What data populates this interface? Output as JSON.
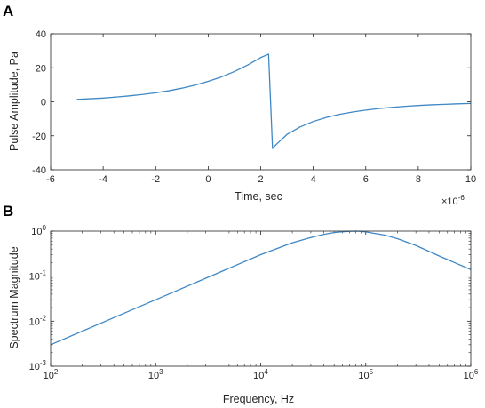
{
  "panels": [
    {
      "label": "A"
    },
    {
      "label": "B"
    }
  ],
  "chart_data": [
    {
      "type": "line",
      "xlabel": "Time, sec",
      "ylabel": "Pulse Amplitude, Pa",
      "x_exponent_label": "×10",
      "x_exponent_power": "-6",
      "xlim": [
        -6,
        10
      ],
      "ylim": [
        -40,
        40
      ],
      "xticks": [
        -6,
        -4,
        -2,
        0,
        2,
        4,
        6,
        8,
        10
      ],
      "xtick_labels": [
        "-6",
        "-4",
        "-2",
        "0",
        "2",
        "4",
        "6",
        "8",
        "10"
      ],
      "yticks": [
        -40,
        -20,
        0,
        20,
        40
      ],
      "ytick_labels": [
        "-40",
        "-20",
        "0",
        "20",
        "40"
      ],
      "x_scale_note": "x values in units of 1e-6 s",
      "grid": false,
      "color": "#3f88c5",
      "series": [
        {
          "x": [
            -5.0,
            -4.5,
            -4.0,
            -3.5,
            -3.0,
            -2.5,
            -2.0,
            -1.5,
            -1.0,
            -0.5,
            0.0,
            0.5,
            1.0,
            1.5,
            2.0,
            2.3,
            2.45,
            2.6,
            3.0,
            3.5,
            4.0,
            4.5,
            5.0,
            5.5,
            6.0,
            6.5,
            7.0,
            7.5,
            8.0,
            8.5,
            9.0,
            9.5,
            10.0
          ],
          "y": [
            1.4,
            1.8,
            2.2,
            2.8,
            3.5,
            4.3,
            5.3,
            6.5,
            8.0,
            9.8,
            12.0,
            14.6,
            17.8,
            21.6,
            26.0,
            28.0,
            -27.5,
            -25.0,
            -19.2,
            -14.8,
            -11.6,
            -9.2,
            -7.4,
            -6.0,
            -4.9,
            -4.0,
            -3.3,
            -2.7,
            -2.2,
            -1.8,
            -1.5,
            -1.2,
            -1.0
          ]
        }
      ]
    },
    {
      "type": "line",
      "xlabel": "Frequency, Hz",
      "ylabel": "Spectrum Magnitude",
      "xscale": "log",
      "yscale": "log",
      "xlim": [
        100,
        1000000
      ],
      "ylim": [
        0.001,
        1
      ],
      "xticks": [
        100,
        1000,
        10000,
        100000,
        1000000
      ],
      "xtick_bases": [
        "10",
        "10",
        "10",
        "10",
        "10"
      ],
      "xtick_powers": [
        "2",
        "3",
        "4",
        "5",
        "6"
      ],
      "yticks": [
        0.001,
        0.01,
        0.1,
        1
      ],
      "ytick_bases": [
        "10",
        "10",
        "10",
        "10"
      ],
      "ytick_powers": [
        "-3",
        "-2",
        "-1",
        "0"
      ],
      "grid": false,
      "color": "#3f88c5",
      "series": [
        {
          "x": [
            100,
            1000,
            10000,
            20000,
            30000,
            40000,
            50000,
            60000,
            70000,
            80000,
            90000,
            100000,
            150000,
            200000,
            300000,
            500000,
            700000,
            1000000
          ],
          "y": [
            0.003,
            0.03,
            0.3,
            0.55,
            0.72,
            0.85,
            0.93,
            0.97,
            0.99,
            1.0,
            0.99,
            0.96,
            0.82,
            0.68,
            0.48,
            0.28,
            0.2,
            0.14
          ]
        }
      ]
    }
  ]
}
